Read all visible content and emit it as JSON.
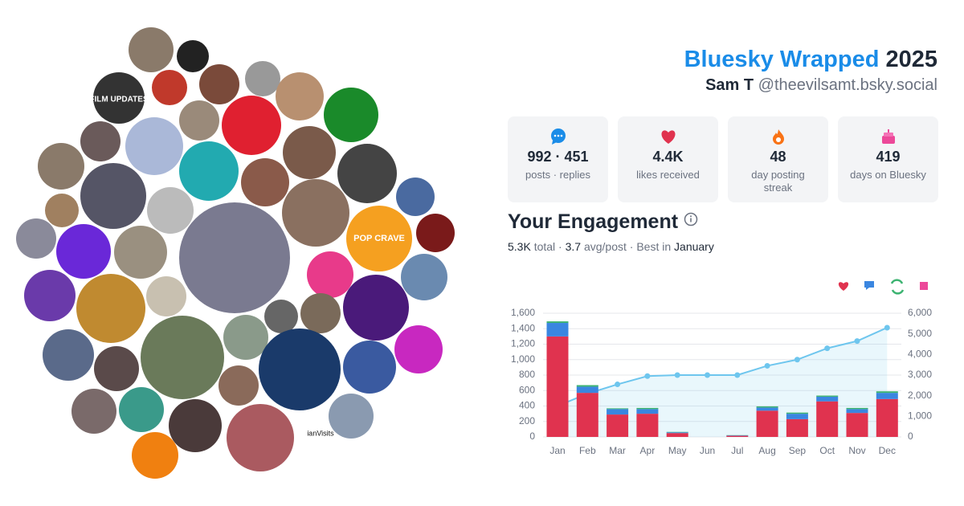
{
  "header": {
    "title": "Bluesky Wrapped",
    "year": "2025",
    "name": "Sam T",
    "handle": "@theevilsamt.bsky.social"
  },
  "avatar_texts": [
    "FILM UPDATES",
    "POP CRAVE",
    "ianVisits"
  ],
  "stats": [
    {
      "value": "992 · 451",
      "label": "posts · replies"
    },
    {
      "value": "4.4K",
      "label": "likes received"
    },
    {
      "value": "48",
      "label": "day posting streak"
    },
    {
      "value": "419",
      "label": "days on Bluesky"
    }
  ],
  "engagement": {
    "title": "Your Engagement",
    "subtitle": [
      "5.3K",
      " total · ",
      "3.7",
      " avg/post · Best in ",
      "January"
    ]
  },
  "chart_data": {
    "type": "bar",
    "categories": [
      "Jan",
      "Feb",
      "Mar",
      "Apr",
      "May",
      "Jun",
      "Jul",
      "Aug",
      "Sep",
      "Oct",
      "Nov",
      "Dec"
    ],
    "series": [
      {
        "color": "#e0334f",
        "values": [
          1300,
          570,
          290,
          300,
          50,
          0,
          15,
          340,
          230,
          460,
          310,
          490
        ]
      },
      {
        "color": "#3a86e0",
        "values": [
          175,
          80,
          70,
          60,
          10,
          0,
          5,
          40,
          70,
          60,
          50,
          80
        ]
      },
      {
        "color": "#3cb371",
        "values": [
          20,
          20,
          10,
          15,
          5,
          0,
          3,
          15,
          15,
          15,
          15,
          20
        ]
      },
      {
        "type": "area",
        "axis": "y2",
        "color": "#6ec6ee",
        "values": [
          1500,
          2100,
          2550,
          2950,
          3000,
          3000,
          3000,
          3450,
          3750,
          4300,
          4650,
          5300
        ]
      }
    ],
    "ylim": [
      0,
      1600
    ],
    "yticks": [
      0,
      200,
      400,
      600,
      800,
      {
        "value": 1000,
        "label": "1,000"
      },
      {
        "value": 1200,
        "label": "1,200"
      },
      {
        "value": 1400,
        "label": "1,400"
      },
      {
        "value": 1600,
        "label": "1,600"
      }
    ],
    "y2lim": [
      0,
      6000
    ],
    "y2ticks": [
      0,
      {
        "value": 1000,
        "label": "1,000"
      },
      {
        "value": 2000,
        "label": "2,000"
      },
      {
        "value": 3000,
        "label": "3,000"
      },
      {
        "value": 4000,
        "label": "4,000"
      },
      {
        "value": 5000,
        "label": "5,000"
      },
      {
        "value": 6000,
        "label": "6,000"
      }
    ],
    "grid": true
  }
}
